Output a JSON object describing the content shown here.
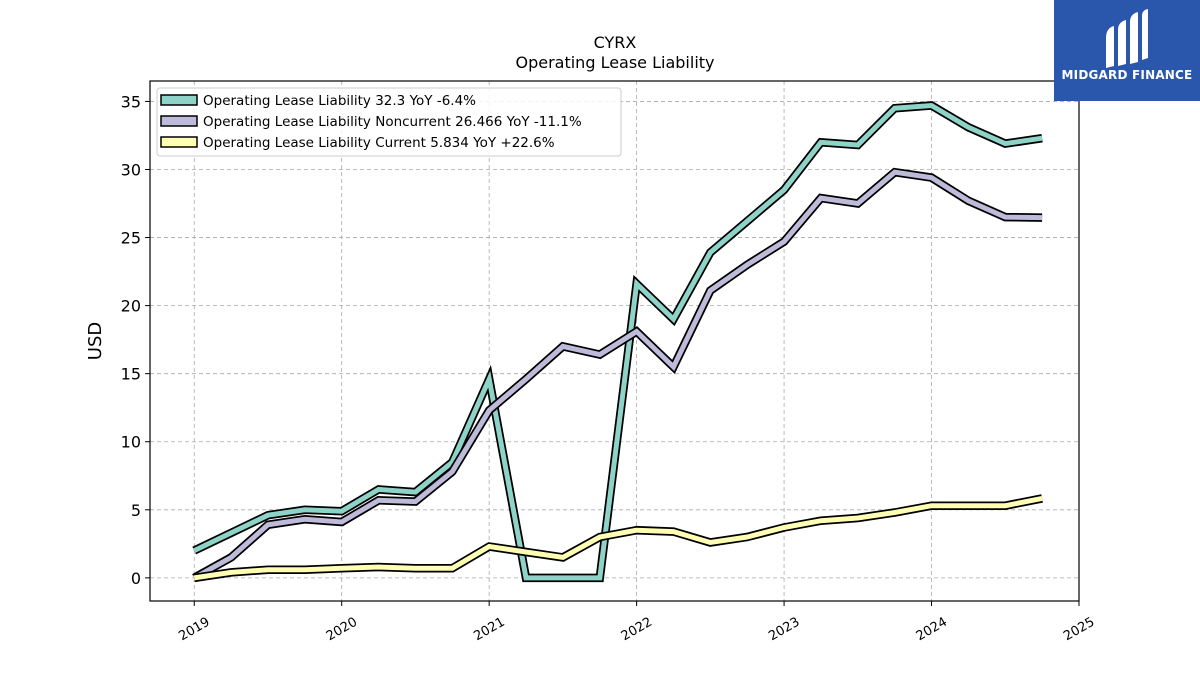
{
  "brand": {
    "name": "MIDGARD FINANCE",
    "bg_color": "#2a57ab"
  },
  "chart_data": {
    "type": "line",
    "title": "CYRX",
    "subtitle": "Operating Lease Liability",
    "xlabel": "",
    "ylabel": "USD",
    "xlim": [
      2018.7,
      2025.0
    ],
    "ylim": [
      -1.7,
      36.5
    ],
    "xticks": [
      "2019",
      "2020",
      "2021",
      "2022",
      "2023",
      "2024",
      "2025"
    ],
    "yticks": [
      0,
      5,
      10,
      15,
      20,
      25,
      30,
      35
    ],
    "grid": true,
    "legend_position": "top-left",
    "x": [
      "2019-01",
      "2019-04",
      "2019-07",
      "2019-10",
      "2020-01",
      "2020-04",
      "2020-07",
      "2020-10",
      "2021-01",
      "2021-04",
      "2021-07",
      "2021-10",
      "2022-01",
      "2022-04",
      "2022-07",
      "2022-10",
      "2023-01",
      "2023-04",
      "2023-07",
      "2023-10",
      "2024-01",
      "2024-04",
      "2024-07",
      "2024-10"
    ],
    "series": [
      {
        "name": "Operating Lease Liability  32.3 YoY -6.4%",
        "color": "#8dd3c7",
        "values": [
          2.0,
          3.3,
          4.6,
          5.0,
          4.9,
          6.5,
          6.3,
          8.5,
          14.6,
          0.0,
          0.0,
          0.0,
          21.6,
          19.0,
          23.9,
          26.2,
          28.5,
          32.0,
          31.8,
          34.5,
          34.7,
          33.1,
          31.9,
          32.3
        ]
      },
      {
        "name": "Operating Lease Liability Noncurrent  26.466 YoY -11.1%",
        "color": "#bebada",
        "values": [
          0.0,
          1.5,
          3.9,
          4.3,
          4.1,
          5.7,
          5.6,
          7.8,
          12.3,
          14.6,
          17.0,
          16.4,
          18.1,
          15.5,
          21.1,
          23.0,
          24.7,
          27.9,
          27.5,
          29.8,
          29.4,
          27.7,
          26.5,
          26.466
        ]
      },
      {
        "name": "Operating Lease Liability Current  5.834 YoY +22.6%",
        "color": "#ffffb3",
        "values": [
          0.0,
          0.4,
          0.6,
          0.6,
          0.7,
          0.8,
          0.7,
          0.7,
          2.3,
          1.9,
          1.5,
          3.0,
          3.5,
          3.4,
          2.6,
          3.0,
          3.7,
          4.2,
          4.4,
          4.8,
          5.3,
          5.3,
          5.3,
          5.834
        ]
      }
    ]
  }
}
